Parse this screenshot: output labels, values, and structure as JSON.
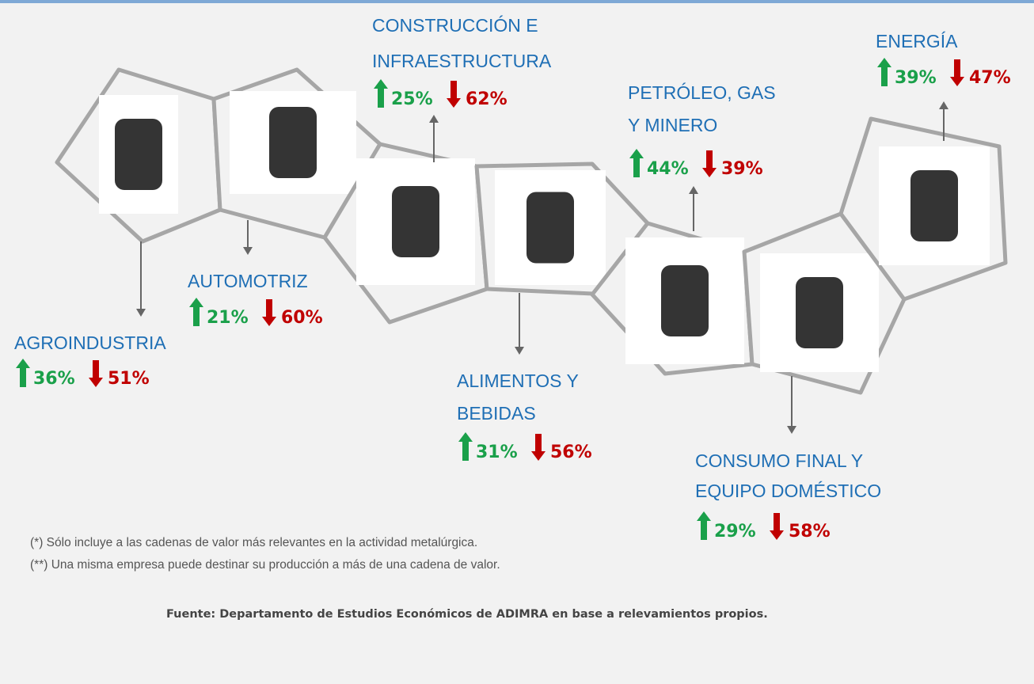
{
  "nodes": [
    {
      "label": [
        "AGROINDUSTRIA"
      ],
      "up": "36%",
      "down": "51%"
    },
    {
      "label": [
        "AUTOMOTRIZ"
      ],
      "up": "21%",
      "down": "60%"
    },
    {
      "label": [
        "CONSTRUCCIÓN E",
        "INFRAESTRUCTURA"
      ],
      "up": "25%",
      "down": "62%"
    },
    {
      "label": [
        "ALIMENTOS Y",
        "BEBIDAS"
      ],
      "up": "31%",
      "down": "56%"
    },
    {
      "label": [
        "PETRÓLEO, GAS",
        "Y MINERO"
      ],
      "up": "44%",
      "down": "39%"
    },
    {
      "label": [
        "CONSUMO FINAL Y",
        "EQUIPO DOMÉSTICO"
      ],
      "up": "29%",
      "down": "58%"
    },
    {
      "label": [
        "ENERGÍA"
      ],
      "up": "39%",
      "down": "47%"
    }
  ],
  "notes": [
    "(*) Sólo incluye a las cadenas de valor más relevantes en la actividad metalúrgica.",
    "(**) Una misma empresa puede destinar su producción a más de una cadena de valor."
  ],
  "source": "Fuente: Departamento de Estudios Económicos de ADIMRA en base a relevamientos propios."
}
